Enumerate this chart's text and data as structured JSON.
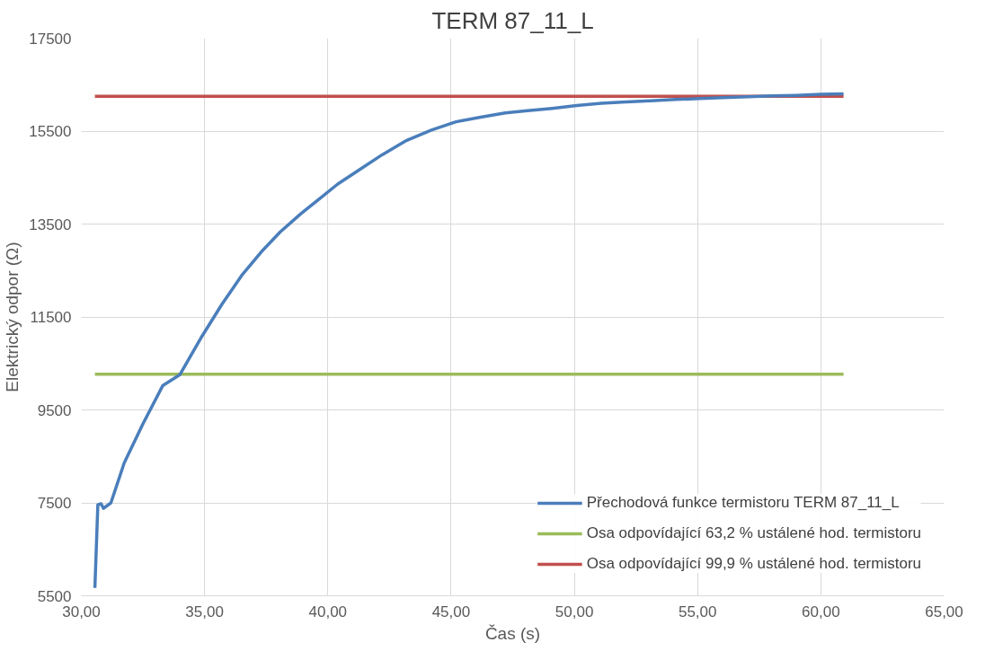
{
  "chart_data": {
    "type": "line",
    "title": "TERM 87_11_L",
    "xlabel": "Čas (s)",
    "ylabel": "Elektrický odpor (Ω)",
    "xlim": [
      30,
      65
    ],
    "xticks": [
      {
        "value": 30,
        "label": "30,00"
      },
      {
        "value": 35,
        "label": "35,00"
      },
      {
        "value": 40,
        "label": "40,00"
      },
      {
        "value": 45,
        "label": "45,00"
      },
      {
        "value": 50,
        "label": "50,00"
      },
      {
        "value": 55,
        "label": "55,00"
      },
      {
        "value": 60,
        "label": "60,00"
      },
      {
        "value": 65,
        "label": "65,00"
      }
    ],
    "ylim": [
      5500,
      17500
    ],
    "yticks": [
      5500,
      7500,
      9500,
      11500,
      13500,
      15500,
      17500
    ],
    "grid": true,
    "legend": "bottom right",
    "marker": "none",
    "line_style": "solid",
    "series": [
      {
        "name": "Přechodová funkce termistoru TERM 87_11_L",
        "color": "#4a7ebb",
        "x": [
          30.55,
          30.67,
          30.8,
          30.9,
          31.2,
          31.74,
          32.5,
          33.3,
          34.0,
          34.9,
          35.7,
          36.5,
          37.3,
          38.07,
          38.9,
          39.65,
          40.4,
          41.2,
          42.2,
          43.2,
          44.2,
          45.2,
          46.2,
          47.2,
          48.1,
          49.1,
          50.1,
          51.1,
          52.1,
          53.1,
          54.1,
          55.07,
          56.0,
          57.05,
          58.0,
          59.0,
          60.0,
          60.92
        ],
        "values": [
          5670,
          7460,
          7480,
          7380,
          7500,
          8360,
          9200,
          10020,
          10260,
          11090,
          11770,
          12390,
          12900,
          13330,
          13720,
          14040,
          14360,
          14640,
          14990,
          15300,
          15520,
          15700,
          15800,
          15890,
          15940,
          15990,
          16050,
          16100,
          16130,
          16150,
          16180,
          16200,
          16220,
          16240,
          16260,
          16270,
          16290,
          16300
        ]
      },
      {
        "name": "Osa odpovídající 63,2 % ustálené hod. termistoru",
        "color": "#9bbb59",
        "x": [
          30.55,
          60.92
        ],
        "values": [
          10270,
          10270
        ]
      },
      {
        "name": "Osa odpovídající 99,9 % ustálené hod. termistoru",
        "color": "#c0504d",
        "x": [
          30.55,
          60.92
        ],
        "values": [
          16250,
          16250
        ]
      }
    ]
  }
}
